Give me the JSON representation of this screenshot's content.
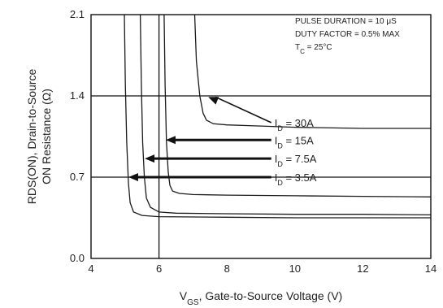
{
  "chart_data": {
    "type": "line",
    "xlabel": "V",
    "xlabel_sub": "GS",
    "xlabel_rest": ", Gate-to-Source Voltage (V)",
    "ylabel_line1": "RDS(ON), Drain-to-Source",
    "ylabel_line2": "ON Resistance (Ω)",
    "xlim": [
      4,
      14
    ],
    "ylim": [
      0,
      2.1
    ],
    "xticks": [
      4,
      6,
      8,
      10,
      12,
      14
    ],
    "xtick_labels": [
      "4",
      "6",
      "8",
      "10",
      "12",
      "14"
    ],
    "yticks": [
      0,
      0.7,
      1.4,
      2.1
    ],
    "ytick_labels": [
      "0.0",
      "0.7",
      "1.4",
      "2.1"
    ],
    "grid": true,
    "notes": [
      {
        "text": "PULSE DURATION = 10 μS"
      },
      {
        "text": "DUTY FACTOR = 0.5% MAX"
      },
      {
        "text": "T",
        "sub": "C",
        "rest": " = 25°C"
      }
    ],
    "series": [
      {
        "label": "I",
        "sub": "D",
        "rest": " = 30A",
        "label_x": 9.4,
        "label_y": 1.17,
        "arrow_to_x": 7.45,
        "arrow_to_y": 1.39,
        "x": [
          7.05,
          7.1,
          7.2,
          7.3,
          7.4,
          7.6,
          8.0,
          9.0,
          10.0,
          12.0,
          14.0
        ],
        "y": [
          2.1,
          1.7,
          1.4,
          1.25,
          1.19,
          1.16,
          1.15,
          1.14,
          1.13,
          1.12,
          1.12
        ]
      },
      {
        "label": "I",
        "sub": "D",
        "rest": " = 15A",
        "label_x": 9.4,
        "label_y": 1.02,
        "arrow_to_x": 6.2,
        "arrow_to_y": 1.02,
        "x": [
          6.15,
          6.18,
          6.22,
          6.27,
          6.32,
          6.4,
          6.6,
          7.0,
          8.0,
          10.0,
          12.0,
          14.0
        ],
        "y": [
          2.1,
          1.5,
          1.0,
          0.75,
          0.63,
          0.58,
          0.56,
          0.55,
          0.545,
          0.54,
          0.535,
          0.53
        ]
      },
      {
        "label": "I",
        "sub": "D",
        "rest": " = 7.5A",
        "label_x": 9.4,
        "label_y": 0.86,
        "arrow_to_x": 5.58,
        "arrow_to_y": 0.86,
        "x": [
          5.45,
          5.48,
          5.52,
          5.57,
          5.63,
          5.75,
          6.0,
          6.5,
          8.0,
          10.0,
          12.0,
          14.0
        ],
        "y": [
          2.1,
          1.5,
          1.0,
          0.7,
          0.52,
          0.44,
          0.4,
          0.39,
          0.385,
          0.38,
          0.38,
          0.375
        ]
      },
      {
        "label": "I",
        "sub": "D",
        "rest": " = 3.5A",
        "label_x": 9.4,
        "label_y": 0.7,
        "arrow_to_x": 5.1,
        "arrow_to_y": 0.7,
        "x": [
          4.98,
          5.01,
          5.05,
          5.1,
          5.15,
          5.25,
          5.5,
          6.0,
          8.0,
          10.0,
          12.0,
          14.0
        ],
        "y": [
          2.1,
          1.5,
          1.0,
          0.65,
          0.48,
          0.4,
          0.37,
          0.36,
          0.355,
          0.35,
          0.35,
          0.35
        ]
      }
    ]
  }
}
